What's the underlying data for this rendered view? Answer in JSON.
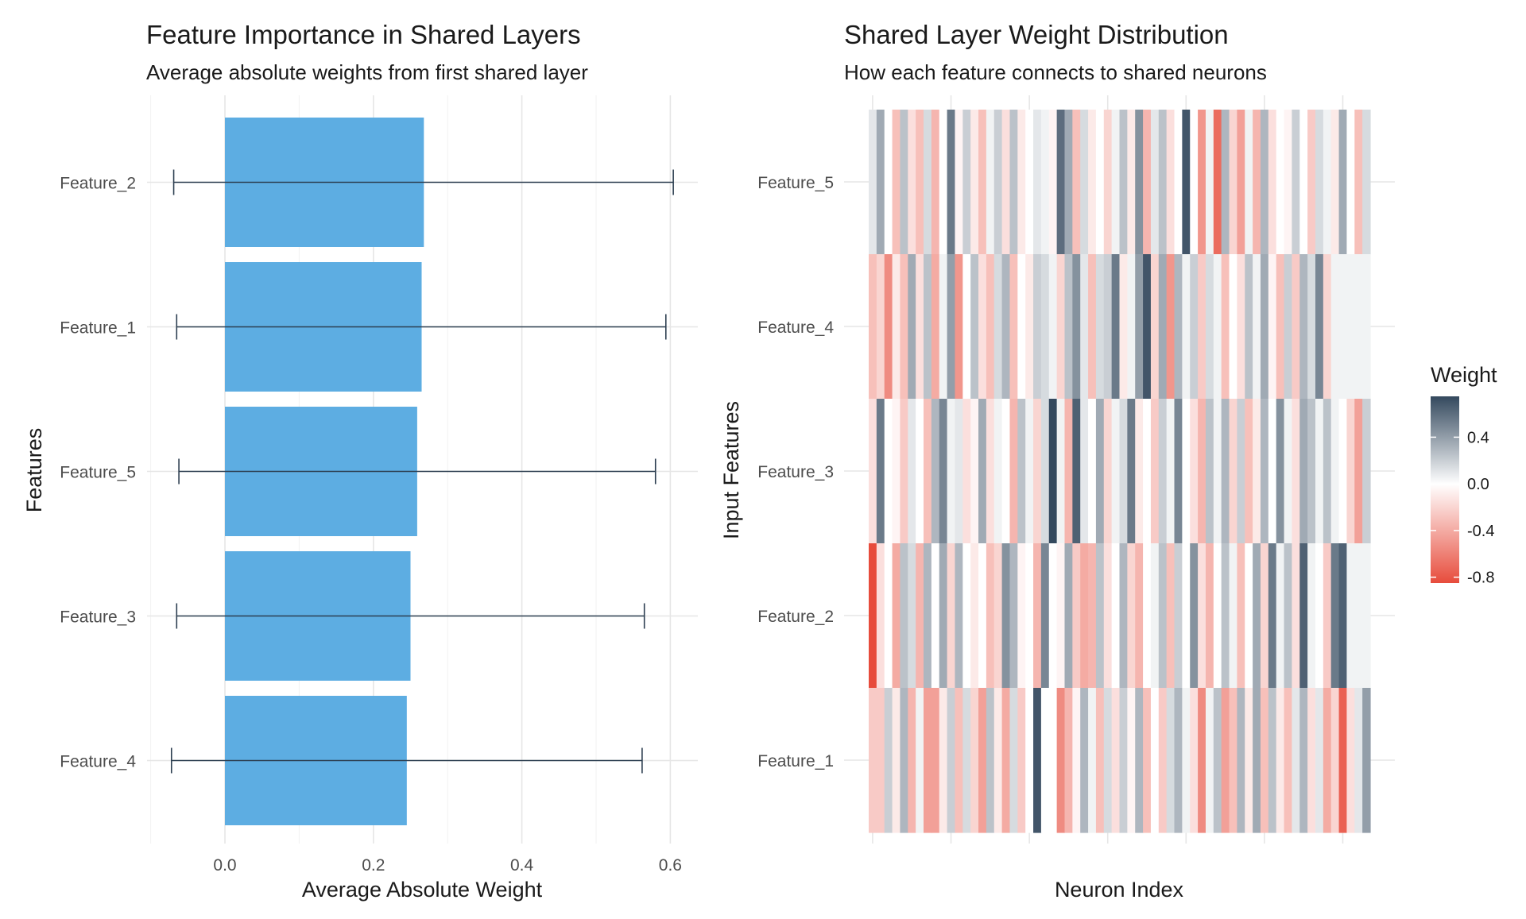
{
  "chart_data": [
    {
      "type": "bar",
      "orientation": "horizontal",
      "title": "Feature Importance in Shared Layers",
      "subtitle": "Average absolute weights from first shared layer",
      "xlabel": "Average Absolute Weight",
      "ylabel": "Features",
      "xlim": [
        -0.1,
        0.635
      ],
      "xticks": [
        0.0,
        0.2,
        0.4,
        0.6
      ],
      "xtick_labels": [
        "0.0",
        "0.2",
        "0.4",
        "0.6"
      ],
      "grid": true,
      "bar_color": "#5DADE2",
      "errorbar_color": "#2C3E50",
      "categories": [
        "Feature_2",
        "Feature_1",
        "Feature_5",
        "Feature_3",
        "Feature_4"
      ],
      "values": [
        0.268,
        0.265,
        0.259,
        0.25,
        0.245
      ],
      "error_low": [
        -0.069,
        -0.065,
        -0.062,
        -0.065,
        -0.072
      ],
      "error_high": [
        0.604,
        0.594,
        0.58,
        0.565,
        0.562
      ]
    },
    {
      "type": "heatmap",
      "title": "Shared Layer Weight Distribution",
      "subtitle": "How each feature connects to shared neurons",
      "xlabel": "Neuron Index",
      "ylabel": "Input Features",
      "rows": [
        "Feature_5",
        "Feature_4",
        "Feature_3",
        "Feature_2",
        "Feature_1"
      ],
      "n_neurons": 64,
      "x_tick_neurons": [
        0.5,
        10.5,
        20.5,
        30.5,
        40.5,
        50.5,
        60.5
      ],
      "grid": true,
      "color_scale": {
        "low": "#E74C3C",
        "mid": "#FFFFFF",
        "high": "#34495E",
        "domain": [
          -0.85,
          0.0,
          0.75
        ]
      },
      "legend": {
        "title": "Weight",
        "placement": "right",
        "ticks": [
          0.4,
          0.0,
          -0.4,
          -0.8
        ],
        "tick_labels": [
          "0.4",
          "0.0",
          "-0.4",
          "-0.8"
        ]
      },
      "values": [
        [
          0.1,
          0.35,
          0.0,
          -0.3,
          0.25,
          -0.15,
          -0.3,
          0.15,
          -0.35,
          0.0,
          0.55,
          -0.05,
          0.2,
          -0.1,
          -0.3,
          0.05,
          0.2,
          -0.15,
          0.25,
          -0.1,
          0.0,
          0.1,
          0.05,
          -0.05,
          0.6,
          0.35,
          -0.3,
          0.15,
          -0.1,
          0.0,
          -0.2,
          0.05,
          0.25,
          -0.1,
          0.45,
          -0.35,
          0.1,
          0.25,
          -0.15,
          0.0,
          0.7,
          0.0,
          -0.5,
          0.05,
          -0.7,
          0.3,
          -0.2,
          -0.45,
          0.05,
          -0.35,
          0.3,
          -0.15,
          0.0,
          -0.05,
          0.2,
          0.0,
          -0.25,
          0.15,
          0.05,
          -0.1,
          0.35,
          0.0,
          -0.3,
          0.15
        ],
        [
          -0.3,
          -0.2,
          -0.55,
          -0.1,
          -0.3,
          0.35,
          -0.15,
          0.25,
          -0.4,
          0.05,
          0.4,
          -0.5,
          0.0,
          0.25,
          -0.15,
          -0.3,
          0.15,
          0.3,
          -0.3,
          0.0,
          -0.1,
          0.2,
          0.15,
          0.05,
          -0.2,
          0.25,
          0.45,
          0.1,
          -0.3,
          0.15,
          0.2,
          0.55,
          -0.1,
          0.05,
          0.4,
          0.7,
          -0.2,
          0.35,
          -0.5,
          0.3,
          0.05,
          0.2,
          -0.25,
          0.15,
          0.05,
          -0.3,
          0.0,
          -0.15,
          0.25,
          0.05,
          0.35,
          -0.05,
          -0.3,
          0.2,
          -0.25,
          0.3,
          0.15,
          0.5,
          -0.2,
          0.05,
          0.05,
          0.05,
          0.05,
          0.05
        ],
        [
          -0.15,
          0.55,
          0.0,
          -0.05,
          -0.25,
          0.1,
          0.0,
          -0.3,
          0.3,
          0.5,
          0.05,
          0.1,
          -0.15,
          -0.05,
          0.35,
          -0.15,
          0.05,
          0.0,
          -0.35,
          0.25,
          0.05,
          -0.2,
          0.15,
          0.75,
          0.05,
          -0.35,
          0.65,
          0.1,
          0.0,
          0.35,
          -0.2,
          0.05,
          0.15,
          0.55,
          -0.1,
          0.0,
          -0.25,
          0.2,
          0.05,
          0.5,
          0.0,
          -0.15,
          -0.35,
          0.25,
          0.05,
          0.3,
          -0.2,
          0.2,
          -0.3,
          -0.1,
          0.3,
          0.0,
          0.45,
          0.05,
          -0.15,
          0.35,
          0.25,
          0.05,
          0.25,
          0.05,
          0.0,
          -0.2,
          -0.45,
          0.2
        ],
        [
          -0.85,
          -0.15,
          0.0,
          -0.4,
          0.25,
          0.15,
          -0.35,
          0.3,
          0.0,
          0.35,
          -0.2,
          0.3,
          0.0,
          -0.1,
          0.0,
          -0.3,
          -0.2,
          0.45,
          0.3,
          -0.05,
          0.0,
          -0.35,
          0.5,
          0.0,
          -0.05,
          0.35,
          -0.25,
          -0.4,
          -0.35,
          0.25,
          -0.15,
          0.0,
          0.3,
          -0.2,
          -0.35,
          0.0,
          0.05,
          0.25,
          -0.3,
          0.2,
          0.0,
          0.45,
          -0.15,
          -0.35,
          0.0,
          0.25,
          0.05,
          -0.3,
          0.0,
          0.35,
          -0.2,
          0.55,
          0.05,
          0.25,
          -0.15,
          0.65,
          0.05,
          0.0,
          -0.25,
          0.55,
          0.65,
          0.05,
          0.05,
          0.05
        ],
        [
          -0.25,
          -0.25,
          0.2,
          -0.1,
          0.3,
          -0.35,
          0.05,
          -0.45,
          -0.45,
          -0.1,
          0.2,
          -0.3,
          0.15,
          -0.2,
          -0.45,
          0.25,
          -0.1,
          -0.4,
          0.15,
          -0.25,
          0.0,
          0.7,
          0.0,
          0.0,
          -0.55,
          -0.35,
          -0.05,
          0.3,
          0.05,
          -0.3,
          0.15,
          -0.15,
          0.2,
          -0.05,
          0.3,
          -0.3,
          0.0,
          -0.25,
          0.15,
          0.3,
          0.05,
          -0.15,
          -0.55,
          0.05,
          0.25,
          -0.45,
          -0.3,
          0.3,
          -0.1,
          0.35,
          -0.3,
          0.25,
          -0.1,
          -0.3,
          0.1,
          0.3,
          -0.15,
          0.1,
          -0.4,
          -0.2,
          -0.75,
          -0.15,
          0.1,
          0.4
        ]
      ]
    }
  ]
}
